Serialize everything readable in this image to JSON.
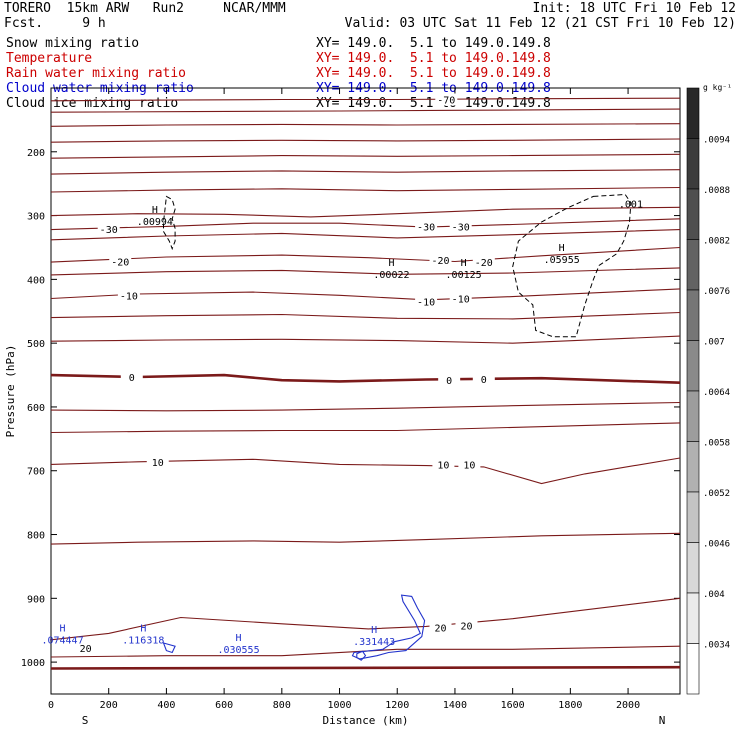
{
  "header": {
    "left_line1": "TORERO  15km ARW   Run2     NCAR/MMM",
    "left_line2": "Fcst.     9 h",
    "init": "Init: 18 UTC Fri 10 Feb 12",
    "valid": "Valid: 03 UTC Sat 11 Feb 12 (21 CST Fri 10 Feb 12)"
  },
  "legend": [
    {
      "name": "Snow mixing ratio",
      "xy": "XY= 149.0.  5.1 to 149.0.149.8",
      "color": "#000000"
    },
    {
      "name": "Temperature",
      "xy": "XY= 149.0.  5.1 to 149.0.149.8",
      "color": "#cc0000"
    },
    {
      "name": "Rain water mixing ratio",
      "xy": "XY= 149.0.  5.1 to 149.0.149.8",
      "color": "#cc0000"
    },
    {
      "name": "Cloud water mixing ratio",
      "xy": "XY= 149.0.  5.1 to 149.0.149.8",
      "color": "#0000cc"
    },
    {
      "name": "Cloud ice mixing ratio",
      "xy": "XY= 149.0.  5.1 to 149.0.149.8",
      "color": "#000000"
    }
  ],
  "colorbar": {
    "unit": "g kg⁻¹",
    "ticks": [
      ".0094",
      ".0088",
      ".0082",
      ".0076",
      ".007",
      ".0064",
      ".0058",
      ".0052",
      ".0046",
      ".004",
      ".0034"
    ]
  },
  "chart_data": {
    "type": "cross-section",
    "xlabel": "Distance (km)",
    "ylabel": "Pressure (hPa)",
    "xlim": [
      0,
      2180
    ],
    "ylim": [
      1050,
      100
    ],
    "x_ticks": [
      0,
      200,
      400,
      600,
      800,
      1000,
      1200,
      1400,
      1600,
      1800,
      2000
    ],
    "y_ticks": [
      200,
      300,
      400,
      500,
      600,
      700,
      800,
      900,
      1000
    ],
    "end_labels": {
      "left": "S",
      "right": "N"
    },
    "temperature_color": "#7b1a1a",
    "temperature_lines": [
      {
        "pts": [
          [
            0,
            120
          ],
          [
            400,
            119
          ],
          [
            800,
            118
          ],
          [
            1200,
            118
          ],
          [
            1600,
            117
          ],
          [
            2180,
            116
          ]
        ]
      },
      {
        "pts": [
          [
            0,
            138
          ],
          [
            500,
            137
          ],
          [
            1000,
            136
          ],
          [
            1400,
            135
          ],
          [
            1800,
            134
          ],
          [
            2180,
            133
          ]
        ]
      },
      {
        "pts": [
          [
            0,
            160
          ],
          [
            400,
            158
          ],
          [
            800,
            157
          ],
          [
            1200,
            158
          ],
          [
            1600,
            157
          ],
          [
            2180,
            156
          ]
        ]
      },
      {
        "pts": [
          [
            0,
            185
          ],
          [
            400,
            183
          ],
          [
            800,
            182
          ],
          [
            1200,
            183
          ],
          [
            1600,
            182
          ],
          [
            2180,
            180
          ]
        ]
      },
      {
        "pts": [
          [
            0,
            210
          ],
          [
            400,
            208
          ],
          [
            800,
            206
          ],
          [
            1200,
            207
          ],
          [
            1600,
            206
          ],
          [
            2180,
            204
          ]
        ]
      },
      {
        "pts": [
          [
            0,
            235
          ],
          [
            400,
            232
          ],
          [
            800,
            230
          ],
          [
            1200,
            232
          ],
          [
            1600,
            230
          ],
          [
            2180,
            228
          ]
        ]
      },
      {
        "pts": [
          [
            0,
            263
          ],
          [
            400,
            260
          ],
          [
            800,
            258
          ],
          [
            1200,
            261
          ],
          [
            1600,
            259
          ],
          [
            2180,
            256
          ]
        ]
      },
      {
        "pts": [
          [
            0,
            300
          ],
          [
            300,
            297
          ],
          [
            600,
            298
          ],
          [
            900,
            302
          ],
          [
            1200,
            297
          ],
          [
            1600,
            290
          ],
          [
            2180,
            287
          ]
        ]
      },
      {
        "label": "-30",
        "pts": [
          [
            0,
            322
          ],
          [
            400,
            317
          ],
          [
            700,
            312
          ],
          [
            1000,
            312
          ],
          [
            1300,
            318
          ],
          [
            1600,
            314
          ],
          [
            2180,
            305
          ]
        ]
      },
      {
        "pts": [
          [
            0,
            338
          ],
          [
            400,
            332
          ],
          [
            800,
            328
          ],
          [
            1200,
            335
          ],
          [
            1600,
            330
          ],
          [
            2180,
            322
          ]
        ]
      },
      {
        "label": "-20",
        "pts": [
          [
            0,
            373
          ],
          [
            400,
            365
          ],
          [
            800,
            362
          ],
          [
            1100,
            366
          ],
          [
            1400,
            372
          ],
          [
            1700,
            363
          ],
          [
            2180,
            350
          ]
        ]
      },
      {
        "pts": [
          [
            0,
            393
          ],
          [
            400,
            388
          ],
          [
            800,
            386
          ],
          [
            1200,
            392
          ],
          [
            1600,
            390
          ],
          [
            2180,
            382
          ]
        ]
      },
      {
        "label": "-10",
        "pts": [
          [
            0,
            430
          ],
          [
            300,
            423
          ],
          [
            700,
            420
          ],
          [
            1000,
            425
          ],
          [
            1300,
            432
          ],
          [
            1600,
            427
          ],
          [
            2180,
            415
          ]
        ]
      },
      {
        "pts": [
          [
            0,
            460
          ],
          [
            400,
            457
          ],
          [
            800,
            455
          ],
          [
            1200,
            461
          ],
          [
            1600,
            462
          ],
          [
            2180,
            452
          ]
        ]
      },
      {
        "pts": [
          [
            0,
            497
          ],
          [
            400,
            495
          ],
          [
            800,
            494
          ],
          [
            1200,
            496
          ],
          [
            1600,
            500
          ],
          [
            2180,
            489
          ]
        ]
      },
      {
        "label": "0",
        "bold": true,
        "pts": [
          [
            0,
            550
          ],
          [
            300,
            553
          ],
          [
            600,
            550
          ],
          [
            800,
            558
          ],
          [
            1000,
            560
          ],
          [
            1300,
            557
          ],
          [
            1700,
            555
          ],
          [
            2180,
            562
          ]
        ]
      },
      {
        "pts": [
          [
            0,
            605
          ],
          [
            400,
            606
          ],
          [
            800,
            605
          ],
          [
            1200,
            602
          ],
          [
            1600,
            598
          ],
          [
            2180,
            593
          ]
        ]
      },
      {
        "pts": [
          [
            0,
            640
          ],
          [
            400,
            638
          ],
          [
            800,
            637
          ],
          [
            1200,
            637
          ],
          [
            1600,
            632
          ],
          [
            2180,
            625
          ]
        ]
      },
      {
        "label": "10",
        "pts": [
          [
            0,
            690
          ],
          [
            300,
            686
          ],
          [
            700,
            682
          ],
          [
            1000,
            690
          ],
          [
            1300,
            692
          ],
          [
            1500,
            694
          ],
          [
            1700,
            720
          ],
          [
            1850,
            705
          ],
          [
            2180,
            680
          ]
        ]
      },
      {
        "pts": [
          [
            0,
            815
          ],
          [
            300,
            812
          ],
          [
            700,
            810
          ],
          [
            1000,
            812
          ],
          [
            1300,
            808
          ],
          [
            1700,
            802
          ],
          [
            2180,
            798
          ]
        ]
      },
      {
        "label": "20",
        "pts": [
          [
            0,
            965
          ],
          [
            200,
            955
          ],
          [
            450,
            930
          ],
          [
            800,
            940
          ],
          [
            1100,
            948
          ],
          [
            1300,
            944
          ],
          [
            1600,
            932
          ],
          [
            2180,
            900
          ]
        ]
      },
      {
        "pts": [
          [
            0,
            992
          ],
          [
            400,
            990
          ],
          [
            800,
            990
          ],
          [
            1200,
            980
          ],
          [
            1600,
            980
          ],
          [
            2180,
            975
          ]
        ]
      },
      {
        "bold": true,
        "pts": [
          [
            0,
            1010
          ],
          [
            2180,
            1008
          ]
        ]
      }
    ],
    "temperature_labels": [
      {
        "text": "-70",
        "x": 1370,
        "y": 118
      },
      {
        "text": "-30",
        "x": 200,
        "y": 321
      },
      {
        "text": "-30",
        "x": 1300,
        "y": 317
      },
      {
        "text": "-30",
        "x": 1420,
        "y": 317
      },
      {
        "text": "-20",
        "x": 240,
        "y": 372
      },
      {
        "text": "-20",
        "x": 1350,
        "y": 370
      },
      {
        "text": "-20",
        "x": 1500,
        "y": 373
      },
      {
        "text": "-10",
        "x": 270,
        "y": 425
      },
      {
        "text": "-10",
        "x": 1300,
        "y": 435
      },
      {
        "text": "-10",
        "x": 1420,
        "y": 430
      },
      {
        "text": "0",
        "x": 280,
        "y": 553
      },
      {
        "text": "0",
        "x": 1380,
        "y": 558
      },
      {
        "text": "0",
        "x": 1500,
        "y": 556
      },
      {
        "text": "10",
        "x": 370,
        "y": 686
      },
      {
        "text": "10",
        "x": 1360,
        "y": 690
      },
      {
        "text": "10",
        "x": 1450,
        "y": 690
      },
      {
        "text": "20",
        "x": 1350,
        "y": 946
      },
      {
        "text": "20",
        "x": 1440,
        "y": 943
      },
      {
        "text": "20",
        "x": 120,
        "y": 978
      }
    ],
    "snow_contours": [
      {
        "pts": [
          [
            400,
            270
          ],
          [
            420,
            275
          ],
          [
            430,
            290
          ],
          [
            420,
            305
          ],
          [
            430,
            320
          ],
          [
            430,
            340
          ],
          [
            420,
            352
          ],
          [
            410,
            340
          ],
          [
            390,
            325
          ],
          [
            390,
            310
          ],
          [
            395,
            290
          ]
        ]
      },
      {
        "pts": [
          [
            1880,
            270
          ],
          [
            1990,
            267
          ],
          [
            2010,
            280
          ],
          [
            2005,
            310
          ],
          [
            1985,
            340
          ],
          [
            1960,
            360
          ],
          [
            1900,
            378
          ],
          [
            1880,
            400
          ],
          [
            1850,
            440
          ],
          [
            1820,
            490
          ],
          [
            1740,
            490
          ],
          [
            1680,
            480
          ],
          [
            1670,
            440
          ],
          [
            1620,
            420
          ],
          [
            1600,
            380
          ],
          [
            1620,
            340
          ],
          [
            1700,
            310
          ],
          [
            1790,
            288
          ]
        ]
      }
    ],
    "snow_markers": [
      {
        "label": "H",
        "value": ".00994",
        "x": 360,
        "y": 302
      },
      {
        "label": "H",
        "value": ".00022",
        "x": 1180,
        "y": 385
      },
      {
        "label": "H",
        "value": ".00125",
        "x": 1430,
        "y": 385
      },
      {
        "label": "H",
        "value": ".05955",
        "x": 1770,
        "y": 362
      },
      {
        "label": "",
        "value": ".001",
        "x": 2010,
        "y": 275
      }
    ],
    "cloud_water_color": "#2233cc",
    "cloud_water_contours": [
      {
        "pts": [
          [
            1050,
            985
          ],
          [
            1150,
            980
          ],
          [
            1190,
            968
          ],
          [
            1250,
            962
          ],
          [
            1280,
            955
          ],
          [
            1260,
            935
          ],
          [
            1220,
            905
          ],
          [
            1215,
            895
          ],
          [
            1250,
            897
          ],
          [
            1270,
            915
          ],
          [
            1295,
            935
          ],
          [
            1285,
            960
          ],
          [
            1230,
            982
          ],
          [
            1170,
            985
          ],
          [
            1130,
            990
          ],
          [
            1070,
            995
          ],
          [
            1045,
            990
          ]
        ]
      },
      {
        "pts": [
          [
            1060,
            987
          ],
          [
            1080,
            983
          ],
          [
            1090,
            990
          ],
          [
            1075,
            997
          ],
          [
            1060,
            993
          ]
        ]
      },
      {
        "pts": [
          [
            390,
            970
          ],
          [
            430,
            975
          ],
          [
            420,
            985
          ],
          [
            400,
            982
          ]
        ]
      }
    ],
    "cloud_water_markers": [
      {
        "label": "H",
        "value": ".074447",
        "x": 40,
        "y": 960
      },
      {
        "label": "H",
        "value": ".116318",
        "x": 320,
        "y": 960
      },
      {
        "label": "H",
        "value": ".030555",
        "x": 650,
        "y": 975
      },
      {
        "label": "H",
        "value": ".331443",
        "x": 1120,
        "y": 962
      }
    ]
  }
}
